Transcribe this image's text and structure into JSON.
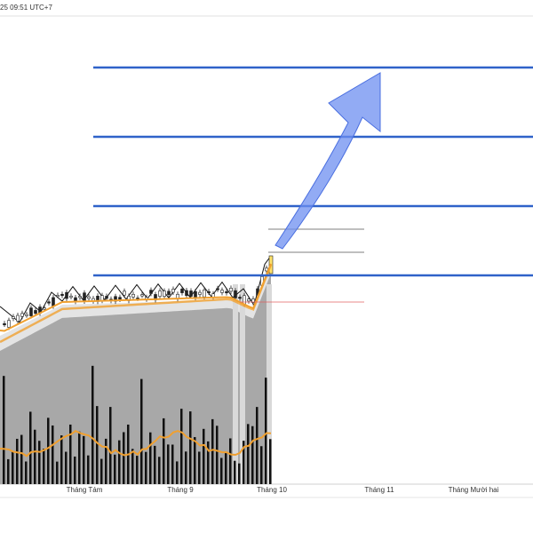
{
  "header": {
    "timestamp": "25 09:51 UTC+7"
  },
  "x_axis": {
    "labels": [
      "Tháng Tám",
      "Tháng 9",
      "Tháng 10",
      "Tháng 11",
      "Tháng Mười hai"
    ]
  }
}
